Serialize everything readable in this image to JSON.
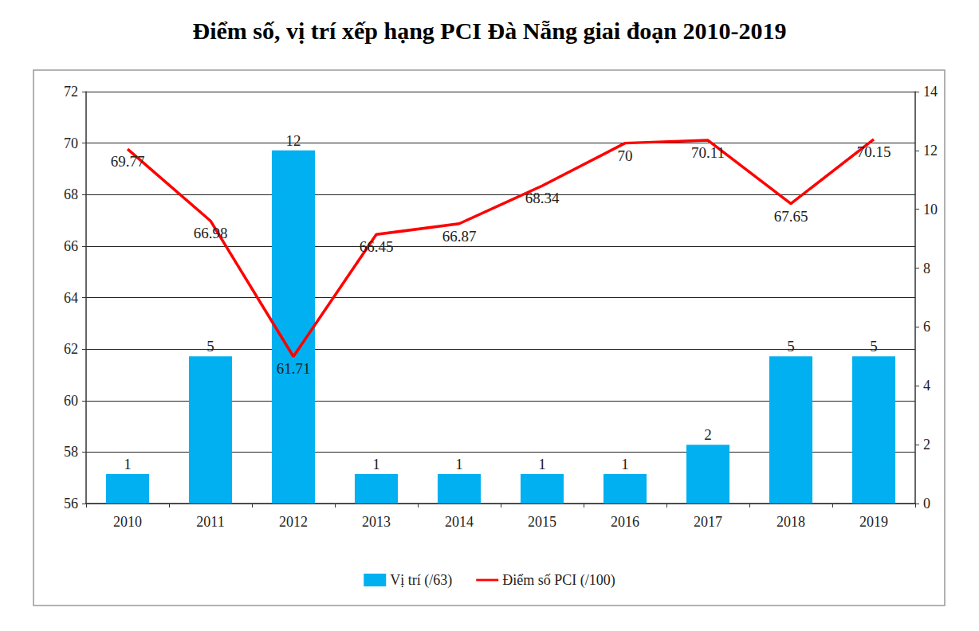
{
  "chart_data": {
    "type": "bar",
    "title": "Điểm số, vị trí xếp hạng PCI Đà Nẵng giai đoạn 2010-2019",
    "categories": [
      "2010",
      "2011",
      "2012",
      "2013",
      "2014",
      "2015",
      "2016",
      "2017",
      "2018",
      "2019"
    ],
    "series": [
      {
        "name": "Vị trí (/63)",
        "type": "bar",
        "color": "#00b0f0",
        "axis": "y2",
        "values": [
          1,
          5,
          12,
          1,
          1,
          1,
          1,
          2,
          5,
          5
        ]
      },
      {
        "name": "Điểm số PCI (/100)",
        "type": "line",
        "color": "#ff0000",
        "values": [
          69.77,
          66.98,
          61.71,
          66.45,
          66.87,
          68.34,
          70,
          70.11,
          67.65,
          70.15
        ]
      }
    ],
    "ylim": [
      56,
      72
    ],
    "yticks": [
      56,
      58,
      60,
      62,
      64,
      66,
      68,
      70,
      72
    ],
    "y2lim": [
      0,
      14
    ],
    "y2ticks": [
      0,
      2,
      4,
      6,
      8,
      10,
      12,
      14
    ],
    "grid": true,
    "legend": "bottom",
    "data_labels": true
  }
}
